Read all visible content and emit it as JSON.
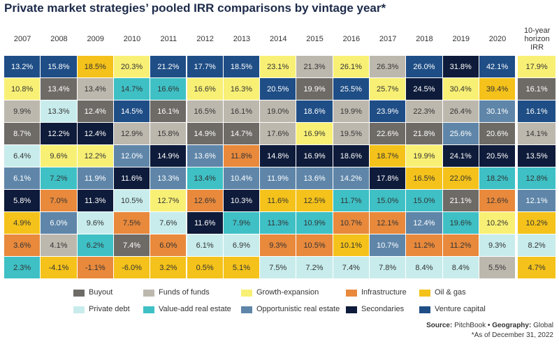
{
  "title": "Private market strategies’ pooled IRR comparisons by vintage year*",
  "columns": [
    "2007",
    "2008",
    "2009",
    "2010",
    "2011",
    "2012",
    "2013",
    "2014",
    "2015",
    "2016",
    "2017",
    "2018",
    "2019",
    "2020",
    "10-year horizon IRR"
  ],
  "legend": [
    {
      "label": "Buyout",
      "color": "#6e6b67"
    },
    {
      "label": "Funds of funds",
      "color": "#bdb8ae"
    },
    {
      "label": "Growth-expansion",
      "color": "#f8f075"
    },
    {
      "label": "Infrastructure",
      "color": "#e8893c"
    },
    {
      "label": "Oil & gas",
      "color": "#f4c21a"
    },
    {
      "label": "Private debt",
      "color": "#c8ecec"
    },
    {
      "label": "Value-add real estate",
      "color": "#3ec0c5"
    },
    {
      "label": "Opportunistic real estate",
      "color": "#5f86a9"
    },
    {
      "label": "Secondaries",
      "color": "#0e1b3a"
    },
    {
      "label": "Venture capital",
      "color": "#1f4e86"
    }
  ],
  "rows": [
    [
      {
        "v": "13.2%",
        "s": 9
      },
      {
        "v": "15.8%",
        "s": 9
      },
      {
        "v": "18.5%",
        "s": 4
      },
      {
        "v": "20.3%",
        "s": 2
      },
      {
        "v": "21.2%",
        "s": 9
      },
      {
        "v": "17.7%",
        "s": 9
      },
      {
        "v": "18.5%",
        "s": 9
      },
      {
        "v": "23.1%",
        "s": 2
      },
      {
        "v": "21.3%",
        "s": 1
      },
      {
        "v": "26.1%",
        "s": 2
      },
      {
        "v": "26.3%",
        "s": 1
      },
      {
        "v": "26.0%",
        "s": 9
      },
      {
        "v": "31.8%",
        "s": 8
      },
      {
        "v": "42.1%",
        "s": 9
      },
      {
        "v": "17.9%",
        "s": 2
      }
    ],
    [
      {
        "v": "10.8%",
        "s": 2
      },
      {
        "v": "13.4%",
        "s": 0
      },
      {
        "v": "13.4%",
        "s": 1
      },
      {
        "v": "14.7%",
        "s": 6
      },
      {
        "v": "16.6%",
        "s": 6
      },
      {
        "v": "16.6%",
        "s": 2
      },
      {
        "v": "16.3%",
        "s": 2
      },
      {
        "v": "20.5%",
        "s": 9
      },
      {
        "v": "19.9%",
        "s": 0
      },
      {
        "v": "25.5%",
        "s": 9
      },
      {
        "v": "25.7%",
        "s": 2
      },
      {
        "v": "24.5%",
        "s": 8
      },
      {
        "v": "30.4%",
        "s": 2
      },
      {
        "v": "39.4%",
        "s": 4
      },
      {
        "v": "16.1%",
        "s": 0
      }
    ],
    [
      {
        "v": "9.9%",
        "s": 1
      },
      {
        "v": "13.3%",
        "s": 5
      },
      {
        "v": "12.4%",
        "s": 0
      },
      {
        "v": "14.5%",
        "s": 9
      },
      {
        "v": "16.1%",
        "s": 0
      },
      {
        "v": "16.5%",
        "s": 1
      },
      {
        "v": "16.1%",
        "s": 1
      },
      {
        "v": "19.0%",
        "s": 1
      },
      {
        "v": "18.6%",
        "s": 9
      },
      {
        "v": "19.9%",
        "s": 1
      },
      {
        "v": "23.9%",
        "s": 9
      },
      {
        "v": "22.3%",
        "s": 1
      },
      {
        "v": "26.4%",
        "s": 1
      },
      {
        "v": "30.1%",
        "s": 7
      },
      {
        "v": "16.1%",
        "s": 9
      }
    ],
    [
      {
        "v": "8.7%",
        "s": 0
      },
      {
        "v": "12.2%",
        "s": 8
      },
      {
        "v": "12.4%",
        "s": 8
      },
      {
        "v": "12.9%",
        "s": 1
      },
      {
        "v": "15.8%",
        "s": 1
      },
      {
        "v": "14.9%",
        "s": 0
      },
      {
        "v": "14.7%",
        "s": 0
      },
      {
        "v": "17.6%",
        "s": 1
      },
      {
        "v": "16.9%",
        "s": 2
      },
      {
        "v": "19.5%",
        "s": 1
      },
      {
        "v": "22.6%",
        "s": 0
      },
      {
        "v": "21.8%",
        "s": 0
      },
      {
        "v": "25.6%",
        "s": 7
      },
      {
        "v": "20.6%",
        "s": 0
      },
      {
        "v": "14.1%",
        "s": 1
      }
    ],
    [
      {
        "v": "6.4%",
        "s": 5
      },
      {
        "v": "9.6%",
        "s": 2
      },
      {
        "v": "12.2%",
        "s": 2
      },
      {
        "v": "12.0%",
        "s": 7
      },
      {
        "v": "14.9%",
        "s": 8
      },
      {
        "v": "13.6%",
        "s": 7
      },
      {
        "v": "11.8%",
        "s": 3
      },
      {
        "v": "14.8%",
        "s": 8
      },
      {
        "v": "16.9%",
        "s": 8
      },
      {
        "v": "18.6%",
        "s": 8
      },
      {
        "v": "18.7%",
        "s": 4
      },
      {
        "v": "19.9%",
        "s": 2
      },
      {
        "v": "24.1%",
        "s": 8
      },
      {
        "v": "20.5%",
        "s": 8
      },
      {
        "v": "13.5%",
        "s": 8
      }
    ],
    [
      {
        "v": "6.1%",
        "s": 7
      },
      {
        "v": "7.2%",
        "s": 6
      },
      {
        "v": "11.9%",
        "s": 7
      },
      {
        "v": "11.6%",
        "s": 8
      },
      {
        "v": "13.3%",
        "s": 7
      },
      {
        "v": "13.4%",
        "s": 6
      },
      {
        "v": "10.4%",
        "s": 7
      },
      {
        "v": "11.9%",
        "s": 7
      },
      {
        "v": "13.6%",
        "s": 7
      },
      {
        "v": "14.2%",
        "s": 7
      },
      {
        "v": "17.8%",
        "s": 8
      },
      {
        "v": "16.5%",
        "s": 4
      },
      {
        "v": "22.0%",
        "s": 4
      },
      {
        "v": "18.2%",
        "s": 6
      },
      {
        "v": "12.8%",
        "s": 6
      }
    ],
    [
      {
        "v": "5.8%",
        "s": 8
      },
      {
        "v": "7.0%",
        "s": 3
      },
      {
        "v": "11.3%",
        "s": 8
      },
      {
        "v": "10.5%",
        "s": 5
      },
      {
        "v": "12.7%",
        "s": 2
      },
      {
        "v": "12.6%",
        "s": 3
      },
      {
        "v": "10.3%",
        "s": 8
      },
      {
        "v": "11.6%",
        "s": 4
      },
      {
        "v": "12.5%",
        "s": 4
      },
      {
        "v": "11.7%",
        "s": 6
      },
      {
        "v": "15.0%",
        "s": 6
      },
      {
        "v": "15.0%",
        "s": 6
      },
      {
        "v": "21.1%",
        "s": 0
      },
      {
        "v": "12.6%",
        "s": 3
      },
      {
        "v": "12.1%",
        "s": 7
      }
    ],
    [
      {
        "v": "4.9%",
        "s": 4
      },
      {
        "v": "6.0%",
        "s": 7
      },
      {
        "v": "9.6%",
        "s": 5
      },
      {
        "v": "7.5%",
        "s": 3
      },
      {
        "v": "7.6%",
        "s": 5
      },
      {
        "v": "11.6%",
        "s": 8
      },
      {
        "v": "7.9%",
        "s": 6
      },
      {
        "v": "11.3%",
        "s": 6
      },
      {
        "v": "10.9%",
        "s": 6
      },
      {
        "v": "10.7%",
        "s": 3
      },
      {
        "v": "12.1%",
        "s": 3
      },
      {
        "v": "12.4%",
        "s": 7
      },
      {
        "v": "19.6%",
        "s": 6
      },
      {
        "v": "10.2%",
        "s": 2
      },
      {
        "v": "10.2%",
        "s": 4
      }
    ],
    [
      {
        "v": "3.6%",
        "s": 3
      },
      {
        "v": "4.1%",
        "s": 1
      },
      {
        "v": "6.2%",
        "s": 6
      },
      {
        "v": "7.4%",
        "s": 0
      },
      {
        "v": "6.0%",
        "s": 3
      },
      {
        "v": "6.1%",
        "s": 5
      },
      {
        "v": "6.9%",
        "s": 5
      },
      {
        "v": "9.3%",
        "s": 3
      },
      {
        "v": "10.5%",
        "s": 3
      },
      {
        "v": "10.1%",
        "s": 4
      },
      {
        "v": "10.7%",
        "s": 7
      },
      {
        "v": "11.2%",
        "s": 3
      },
      {
        "v": "11.2%",
        "s": 3
      },
      {
        "v": "9.3%",
        "s": 5
      },
      {
        "v": "8.2%",
        "s": 5
      }
    ],
    [
      {
        "v": "2.3%",
        "s": 6
      },
      {
        "v": "-4.1%",
        "s": 4
      },
      {
        "v": "-1.1%",
        "s": 3
      },
      {
        "v": "-6.0%",
        "s": 4
      },
      {
        "v": "3.2%",
        "s": 4
      },
      {
        "v": "0.5%",
        "s": 4
      },
      {
        "v": "5.1%",
        "s": 4
      },
      {
        "v": "7.5%",
        "s": 5
      },
      {
        "v": "7.2%",
        "s": 5
      },
      {
        "v": "7.4%",
        "s": 5
      },
      {
        "v": "7.8%",
        "s": 5
      },
      {
        "v": "8.4%",
        "s": 5
      },
      {
        "v": "8.4%",
        "s": 5
      },
      {
        "v": "5.5%",
        "s": 1
      },
      {
        "v": "4.7%",
        "s": 4
      }
    ]
  ],
  "source": {
    "label": "Source:",
    "value": "PitchBook",
    "separator": "•",
    "label2": "Geography:",
    "value2": "Global"
  },
  "footnote": "*As of December 31, 2022"
}
